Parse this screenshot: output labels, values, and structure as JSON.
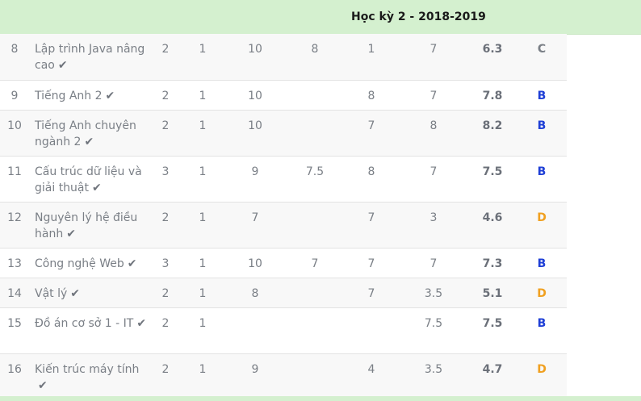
{
  "semester": {
    "title": "Học kỳ 2 - 2018-2019"
  },
  "icons": {
    "check": "check-icon"
  },
  "colors": {
    "grade_B": "#1f3fd6",
    "grade_C": "#7a7f86",
    "grade_D": "#f0a020",
    "header_bg": "#d4f0cf"
  },
  "rows": [
    {
      "stt": "8",
      "name": "Lập trình Java nâng cao",
      "passed": true,
      "c1": "2",
      "c2": "1",
      "c3": "10",
      "c4": "8",
      "c5": "1",
      "c6": "7",
      "score": "6.3",
      "letter": "C",
      "letter_color": "#7a7f86"
    },
    {
      "stt": "9",
      "name": "Tiếng Anh 2",
      "passed": true,
      "c1": "2",
      "c2": "1",
      "c3": "10",
      "c4": "",
      "c5": "8",
      "c6": "7",
      "score": "7.8",
      "letter": "B",
      "letter_color": "#1f3fd6"
    },
    {
      "stt": "10",
      "name": "Tiếng Anh chuyên ngành 2",
      "passed": true,
      "c1": "2",
      "c2": "1",
      "c3": "10",
      "c4": "",
      "c5": "7",
      "c6": "8",
      "score": "8.2",
      "letter": "B",
      "letter_color": "#1f3fd6"
    },
    {
      "stt": "11",
      "name": "Cấu trúc dữ liệu và giải thuật",
      "passed": true,
      "c1": "3",
      "c2": "1",
      "c3": "9",
      "c4": "7.5",
      "c5": "8",
      "c6": "7",
      "score": "7.5",
      "letter": "B",
      "letter_color": "#1f3fd6"
    },
    {
      "stt": "12",
      "name": "Nguyên lý hệ điều hành",
      "passed": true,
      "c1": "2",
      "c2": "1",
      "c3": "7",
      "c4": "",
      "c5": "7",
      "c6": "3",
      "score": "4.6",
      "letter": "D",
      "letter_color": "#f0a020"
    },
    {
      "stt": "13",
      "name": "Công nghệ Web",
      "passed": true,
      "c1": "3",
      "c2": "1",
      "c3": "10",
      "c4": "7",
      "c5": "7",
      "c6": "7",
      "score": "7.3",
      "letter": "B",
      "letter_color": "#1f3fd6"
    },
    {
      "stt": "14",
      "name": "Vật lý",
      "passed": true,
      "c1": "2",
      "c2": "1",
      "c3": "8",
      "c4": "",
      "c5": "7",
      "c6": "3.5",
      "score": "5.1",
      "letter": "D",
      "letter_color": "#f0a020"
    },
    {
      "stt": "15",
      "name": "Đồ án cơ sở 1 - IT",
      "passed": true,
      "c1": "2",
      "c2": "1",
      "c3": "",
      "c4": "",
      "c5": "",
      "c6": "7.5",
      "score": "7.5",
      "letter": "B",
      "letter_color": "#1f3fd6"
    },
    {
      "stt": "16",
      "name": "Kiến trúc máy tính",
      "passed": true,
      "c1": "2",
      "c2": "1",
      "c3": "9",
      "c4": "",
      "c5": "4",
      "c6": "3.5",
      "score": "4.7",
      "letter": "D",
      "letter_color": "#f0a020"
    }
  ]
}
